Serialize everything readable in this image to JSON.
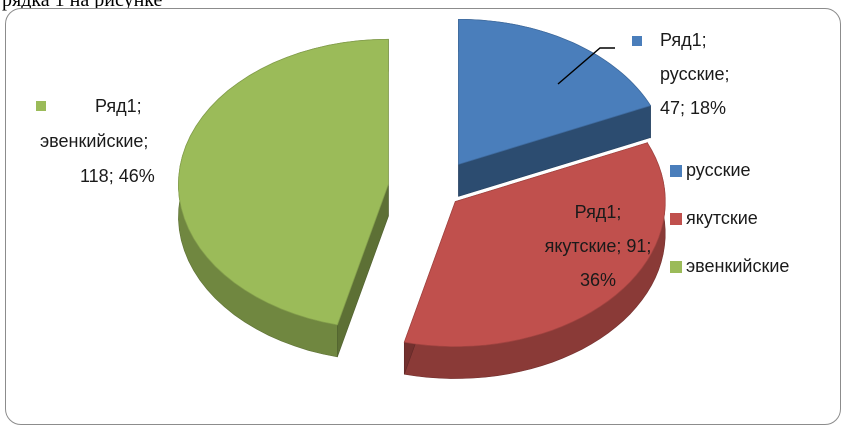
{
  "caption_fragment": "рядка 1 на рисунке",
  "chart_data": {
    "type": "pie",
    "series_name": "Ряд1",
    "categories": [
      "русские",
      "якутские",
      "эвенкийские"
    ],
    "values": [
      47,
      91,
      118
    ],
    "percents": [
      "18%",
      "36%",
      "46%"
    ],
    "colors": [
      "#4a7ebb",
      "#c0504d",
      "#9bbb59"
    ],
    "data_labels": [
      [
        "Ряд1;",
        "русские;",
        "47; 18%"
      ],
      [
        "Ряд1;",
        "якутские; 91;",
        "36%"
      ],
      [
        "Ряд1;",
        "эвенкийские;",
        "118; 46%"
      ]
    ],
    "legend": [
      "русские",
      "якутские",
      "эвенкийские"
    ],
    "legend_position": "right",
    "exploded": true,
    "three_d": true
  }
}
